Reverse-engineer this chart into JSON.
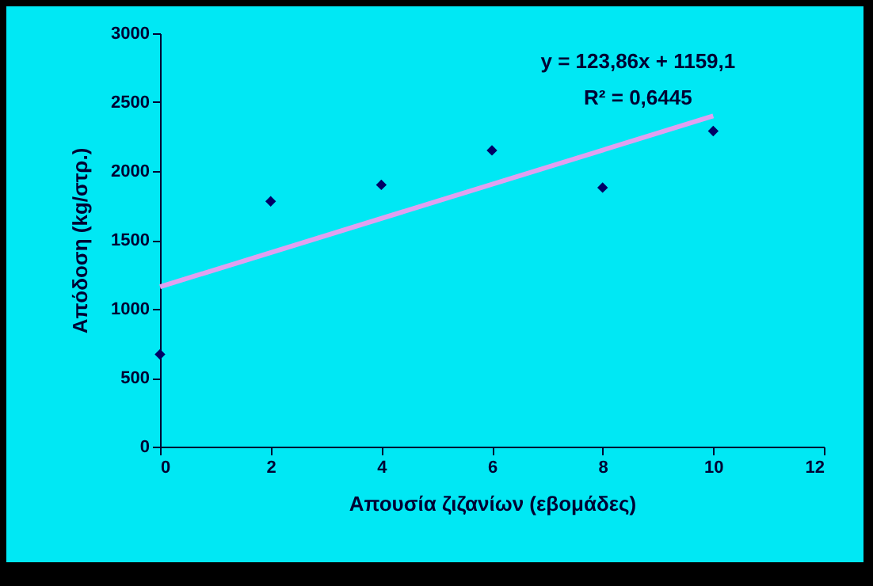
{
  "chart_data": {
    "type": "scatter",
    "xlabel": "Απουσία ζιζανίων (εβομάδες)",
    "ylabel": "Απόδοση (kg/στρ.)",
    "annotations": [
      "y = 123,86x + 1159,1",
      "R² = 0,6445"
    ],
    "x": [
      0,
      2,
      4,
      6,
      8,
      10
    ],
    "series": [
      {
        "color": "#000066",
        "marker": "diamond",
        "values": [
          670,
          1780,
          1900,
          2150,
          1880,
          2290
        ]
      },
      {
        "type": "line",
        "color": "#e0a0f0",
        "marker": "none",
        "x": [
          0,
          10
        ],
        "values": [
          1160,
          2400
        ]
      }
    ],
    "xlim": [
      0,
      12
    ],
    "xticks": [
      0,
      2,
      4,
      6,
      8,
      10,
      12
    ],
    "ylim": [
      0,
      3000
    ],
    "yticks": [
      0,
      500,
      1000,
      1500,
      2000,
      2500,
      3000
    ],
    "grid": false
  }
}
